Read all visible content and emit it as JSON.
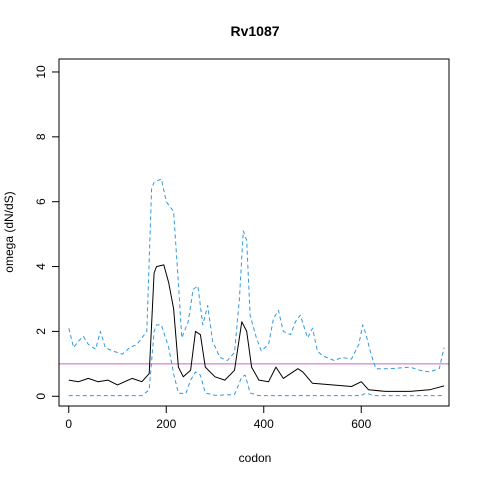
{
  "chart_data": {
    "type": "line",
    "title": "Rv1087",
    "xlabel": "codon",
    "ylabel": "omega (dN/dS)",
    "xlim": [
      -20,
      780
    ],
    "ylim": [
      -0.3,
      10.4
    ],
    "xticks": [
      0,
      200,
      400,
      600
    ],
    "yticks": [
      0,
      2,
      4,
      6,
      8,
      10
    ],
    "grid": false,
    "reference_line": {
      "y": 1,
      "color": "#cc66cc"
    },
    "colors": {
      "mean": "#000000",
      "bounds": "#3399dd"
    },
    "series": [
      {
        "style": "solid",
        "points": [
          [
            0,
            0.5
          ],
          [
            20,
            0.45
          ],
          [
            40,
            0.55
          ],
          [
            60,
            0.45
          ],
          [
            80,
            0.5
          ],
          [
            100,
            0.35
          ],
          [
            130,
            0.55
          ],
          [
            150,
            0.45
          ],
          [
            165,
            0.7
          ],
          [
            175,
            3.8
          ],
          [
            180,
            4.0
          ],
          [
            195,
            4.05
          ],
          [
            205,
            3.5
          ],
          [
            215,
            2.7
          ],
          [
            225,
            0.9
          ],
          [
            235,
            0.6
          ],
          [
            250,
            0.8
          ],
          [
            260,
            2.0
          ],
          [
            270,
            1.9
          ],
          [
            280,
            0.9
          ],
          [
            300,
            0.6
          ],
          [
            320,
            0.5
          ],
          [
            340,
            0.8
          ],
          [
            355,
            2.3
          ],
          [
            365,
            2.0
          ],
          [
            375,
            0.9
          ],
          [
            390,
            0.5
          ],
          [
            410,
            0.45
          ],
          [
            425,
            0.9
          ],
          [
            440,
            0.55
          ],
          [
            460,
            0.75
          ],
          [
            470,
            0.85
          ],
          [
            480,
            0.75
          ],
          [
            500,
            0.4
          ],
          [
            540,
            0.35
          ],
          [
            580,
            0.3
          ],
          [
            600,
            0.45
          ],
          [
            615,
            0.2
          ],
          [
            650,
            0.15
          ],
          [
            700,
            0.15
          ],
          [
            740,
            0.2
          ],
          [
            760,
            0.28
          ],
          [
            770,
            0.32
          ]
        ]
      },
      {
        "style": "dashed",
        "points": [
          [
            0,
            2.1
          ],
          [
            10,
            1.5
          ],
          [
            20,
            1.7
          ],
          [
            30,
            1.85
          ],
          [
            40,
            1.6
          ],
          [
            55,
            1.45
          ],
          [
            65,
            2.0
          ],
          [
            75,
            1.5
          ],
          [
            90,
            1.4
          ],
          [
            110,
            1.3
          ],
          [
            125,
            1.5
          ],
          [
            140,
            1.6
          ],
          [
            160,
            2.0
          ],
          [
            170,
            6.4
          ],
          [
            175,
            6.6
          ],
          [
            190,
            6.7
          ],
          [
            200,
            6.0
          ],
          [
            215,
            5.7
          ],
          [
            225,
            3.5
          ],
          [
            232,
            1.8
          ],
          [
            245,
            2.3
          ],
          [
            255,
            3.3
          ],
          [
            265,
            3.4
          ],
          [
            275,
            2.2
          ],
          [
            285,
            2.8
          ],
          [
            295,
            1.7
          ],
          [
            310,
            1.2
          ],
          [
            325,
            1.1
          ],
          [
            340,
            1.35
          ],
          [
            350,
            3.0
          ],
          [
            358,
            5.1
          ],
          [
            365,
            4.8
          ],
          [
            372,
            2.5
          ],
          [
            385,
            1.8
          ],
          [
            395,
            1.4
          ],
          [
            410,
            1.6
          ],
          [
            420,
            2.4
          ],
          [
            430,
            2.65
          ],
          [
            440,
            2.0
          ],
          [
            455,
            1.9
          ],
          [
            465,
            2.3
          ],
          [
            475,
            2.5
          ],
          [
            490,
            1.8
          ],
          [
            500,
            2.1
          ],
          [
            510,
            1.4
          ],
          [
            520,
            1.25
          ],
          [
            545,
            1.1
          ],
          [
            560,
            1.2
          ],
          [
            580,
            1.15
          ],
          [
            595,
            1.6
          ],
          [
            603,
            2.2
          ],
          [
            610,
            1.9
          ],
          [
            620,
            1.3
          ],
          [
            630,
            0.85
          ],
          [
            660,
            0.85
          ],
          [
            700,
            0.9
          ],
          [
            720,
            0.8
          ],
          [
            740,
            0.75
          ],
          [
            760,
            0.85
          ],
          [
            770,
            1.5
          ]
        ]
      },
      {
        "style": "dashed",
        "points": [
          [
            0,
            0.02
          ],
          [
            150,
            0.02
          ],
          [
            165,
            0.2
          ],
          [
            175,
            2.0
          ],
          [
            180,
            2.2
          ],
          [
            190,
            2.2
          ],
          [
            205,
            1.5
          ],
          [
            215,
            0.7
          ],
          [
            225,
            0.1
          ],
          [
            240,
            0.08
          ],
          [
            250,
            0.5
          ],
          [
            260,
            0.75
          ],
          [
            270,
            0.65
          ],
          [
            280,
            0.1
          ],
          [
            300,
            0.03
          ],
          [
            340,
            0.05
          ],
          [
            355,
            0.6
          ],
          [
            362,
            0.65
          ],
          [
            372,
            0.1
          ],
          [
            390,
            0.02
          ],
          [
            600,
            0.02
          ],
          [
            610,
            0.1
          ],
          [
            625,
            0.02
          ],
          [
            770,
            0.02
          ]
        ]
      }
    ]
  }
}
